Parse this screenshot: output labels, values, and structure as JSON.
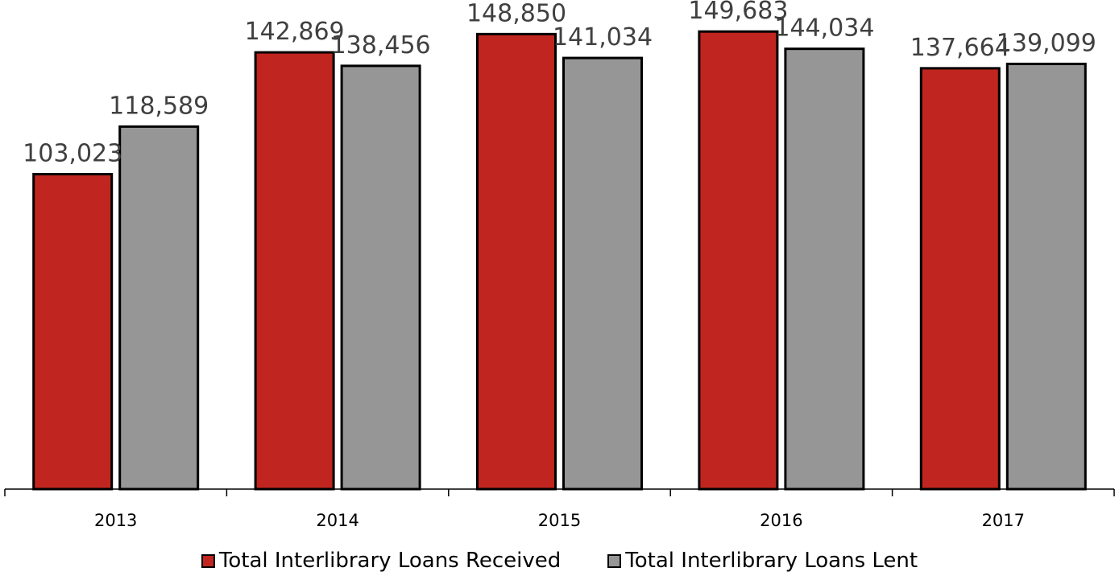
{
  "chart_data": {
    "type": "bar",
    "categories": [
      "2013",
      "2014",
      "2015",
      "2016",
      "2017"
    ],
    "series": [
      {
        "name": "Total Interlibrary Loans Received",
        "values": [
          103023,
          142869,
          148850,
          149683,
          137664
        ],
        "labels": [
          "103,023",
          "142,869",
          "148,850",
          "149,683",
          "137,664"
        ],
        "color": "#c0261f"
      },
      {
        "name": "Total Interlibrary Loans Lent",
        "values": [
          118589,
          138456,
          141034,
          144034,
          139099
        ],
        "labels": [
          "118,589",
          "138,456",
          "141,034",
          "144,034",
          "139,099"
        ],
        "color": "#969696"
      }
    ],
    "title": "",
    "xlabel": "",
    "ylabel": "",
    "ylim": [
      0,
      160000
    ],
    "grid": false,
    "legend_position": "bottom"
  }
}
